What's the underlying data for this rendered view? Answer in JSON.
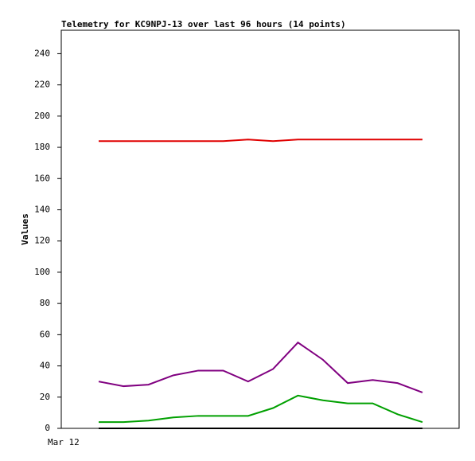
{
  "chart_data": {
    "type": "line",
    "title": "Telemetry for KC9NPJ-13 over last 96 hours (14 points)",
    "y_label": "Values",
    "x_start_label": "Mar 12",
    "categories": [
      null,
      null,
      null,
      null,
      null,
      null,
      null,
      null,
      null,
      null,
      null,
      null,
      null,
      null
    ],
    "series": [
      {
        "color": "#e00000",
        "values": [
          184,
          184,
          184,
          184,
          184,
          184,
          185,
          184,
          185,
          185,
          185,
          185,
          185,
          185
        ]
      },
      {
        "color": "#800080",
        "values": [
          30,
          27,
          28,
          34,
          37,
          37,
          30,
          38,
          55,
          44,
          29,
          31,
          29,
          23
        ]
      },
      {
        "color": "#00a000",
        "values": [
          4,
          4,
          5,
          7,
          8,
          8,
          8,
          13,
          21,
          18,
          16,
          16,
          9,
          4
        ]
      },
      {
        "color": "#000000",
        "values": [
          0,
          0,
          0,
          0,
          0,
          0,
          0,
          0,
          0,
          0,
          0,
          0,
          0,
          0
        ]
      }
    ],
    "ylim": [
      0,
      255
    ],
    "yticks": [
      0,
      20,
      40,
      60,
      80,
      100,
      120,
      140,
      160,
      180,
      200,
      220,
      240
    ],
    "grid": false
  }
}
